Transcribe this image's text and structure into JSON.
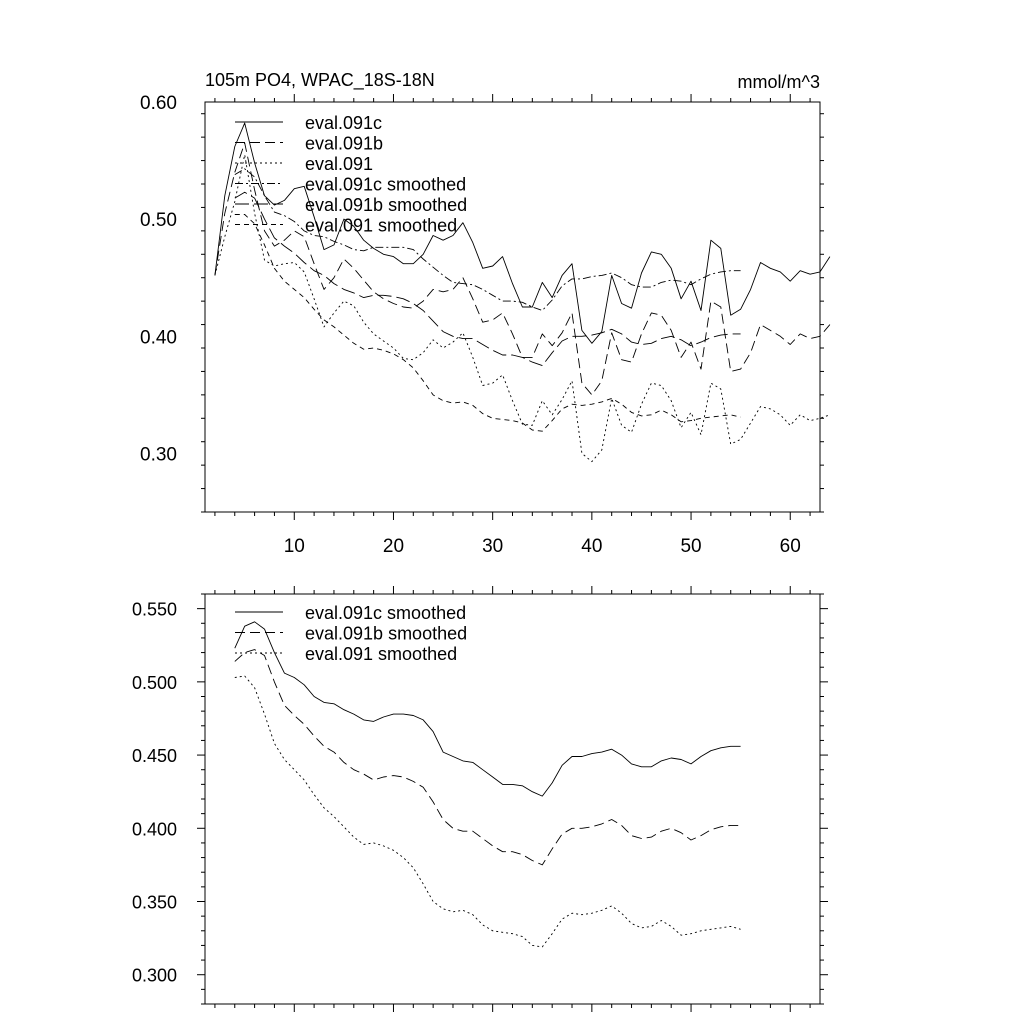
{
  "chart_data": [
    {
      "type": "line",
      "title": "105m PO4, WPAC_18S-18N",
      "units": "mmol/m^3",
      "xlim": [
        1,
        63
      ],
      "ylim": [
        0.25,
        0.6
      ],
      "xticks": [
        10,
        20,
        30,
        40,
        50,
        60
      ],
      "xtick_labels": [
        "10",
        "20",
        "30",
        "40",
        "50",
        "60"
      ],
      "yticks": [
        0.3,
        0.4,
        0.5,
        0.6
      ],
      "ytick_labels": [
        "0.30",
        "0.40",
        "0.50",
        "0.60"
      ],
      "legend_position": "top-left",
      "series": [
        {
          "name": "eval.091c",
          "style": "solid",
          "x_start": 2,
          "values": [
            0.452,
            0.52,
            0.562,
            0.582,
            0.548,
            0.52,
            0.512,
            0.516,
            0.526,
            0.528,
            0.502,
            0.474,
            0.478,
            0.5,
            0.494,
            0.482,
            0.475,
            0.47,
            0.468,
            0.462,
            0.462,
            0.47,
            0.486,
            0.482,
            0.486,
            0.497,
            0.48,
            0.458,
            0.46,
            0.468,
            0.445,
            0.425,
            0.425,
            0.446,
            0.433,
            0.452,
            0.462,
            0.405,
            0.394,
            0.404,
            0.452,
            0.428,
            0.424,
            0.454,
            0.472,
            0.47,
            0.458,
            0.432,
            0.447,
            0.422,
            0.482,
            0.475,
            0.418,
            0.423,
            0.44,
            0.463,
            0.458,
            0.455,
            0.447,
            0.456,
            0.453,
            0.455,
            0.468
          ]
        },
        {
          "name": "eval.091b",
          "style": "dash",
          "x_start": 2,
          "values": [
            0.452,
            0.505,
            0.54,
            0.565,
            0.525,
            0.49,
            0.477,
            0.482,
            0.49,
            0.485,
            0.462,
            0.44,
            0.45,
            0.466,
            0.458,
            0.448,
            0.438,
            0.432,
            0.428,
            0.425,
            0.424,
            0.43,
            0.44,
            0.438,
            0.44,
            0.45,
            0.432,
            0.412,
            0.414,
            0.42,
            0.402,
            0.382,
            0.382,
            0.402,
            0.392,
            0.403,
            0.42,
            0.36,
            0.35,
            0.362,
            0.403,
            0.38,
            0.378,
            0.402,
            0.42,
            0.418,
            0.405,
            0.382,
            0.395,
            0.372,
            0.43,
            0.425,
            0.37,
            0.372,
            0.386,
            0.41,
            0.405,
            0.4,
            0.393,
            0.402,
            0.398,
            0.4,
            0.41
          ]
        },
        {
          "name": "eval.091",
          "style": "dot",
          "x_start": 2,
          "values": [
            0.452,
            0.485,
            0.515,
            0.555,
            0.505,
            0.465,
            0.46,
            0.462,
            0.463,
            0.455,
            0.432,
            0.408,
            0.42,
            0.43,
            0.426,
            0.412,
            0.402,
            0.396,
            0.39,
            0.381,
            0.38,
            0.386,
            0.397,
            0.39,
            0.395,
            0.403,
            0.382,
            0.358,
            0.36,
            0.367,
            0.345,
            0.325,
            0.324,
            0.345,
            0.333,
            0.346,
            0.362,
            0.3,
            0.293,
            0.303,
            0.347,
            0.324,
            0.318,
            0.342,
            0.36,
            0.358,
            0.345,
            0.322,
            0.335,
            0.316,
            0.36,
            0.355,
            0.308,
            0.312,
            0.326,
            0.34,
            0.338,
            0.333,
            0.324,
            0.333,
            0.328,
            0.33,
            0.333
          ]
        },
        {
          "name": "eval.091c smoothed",
          "style": "dashdot",
          "x_start": 4,
          "values": [
            0.538,
            0.543,
            0.536,
            0.52,
            0.506,
            0.503,
            0.498,
            0.49,
            0.486,
            0.485,
            0.481,
            0.478,
            0.474,
            0.473,
            0.476,
            0.476,
            0.476,
            0.476,
            0.474,
            0.466,
            0.459,
            0.452,
            0.446,
            0.445,
            0.444,
            0.44,
            0.435,
            0.43,
            0.43,
            0.429,
            0.425,
            0.422,
            0.431,
            0.443,
            0.449,
            0.449,
            0.451,
            0.452,
            0.454,
            0.45,
            0.444,
            0.442,
            0.442,
            0.446,
            0.448,
            0.447,
            0.444,
            0.449,
            0.453,
            0.455,
            0.456,
            0.456
          ]
        },
        {
          "name": "eval.091b smoothed",
          "style": "longdash",
          "x_start": 4,
          "values": [
            0.518,
            0.523,
            0.518,
            0.5,
            0.484,
            0.477,
            0.471,
            0.463,
            0.456,
            0.452,
            0.445,
            0.44,
            0.437,
            0.433,
            0.435,
            0.435,
            0.434,
            0.432,
            0.428,
            0.422,
            0.413,
            0.404,
            0.4,
            0.398,
            0.398,
            0.393,
            0.388,
            0.384,
            0.384,
            0.382,
            0.378,
            0.375,
            0.386,
            0.396,
            0.4,
            0.4,
            0.401,
            0.403,
            0.406,
            0.402,
            0.395,
            0.393,
            0.394,
            0.398,
            0.4,
            0.397,
            0.392,
            0.395,
            0.399,
            0.401,
            0.402,
            0.402
          ]
        },
        {
          "name": "eval.091 smoothed",
          "style": "shortdash",
          "x_start": 4,
          "values": [
            0.504,
            0.504,
            0.496,
            0.478,
            0.458,
            0.447,
            0.44,
            0.433,
            0.423,
            0.414,
            0.408,
            0.401,
            0.394,
            0.389,
            0.39,
            0.388,
            0.385,
            0.38,
            0.373,
            0.362,
            0.35,
            0.345,
            0.343,
            0.344,
            0.341,
            0.334,
            0.33,
            0.329,
            0.328,
            0.326,
            0.32,
            0.319,
            0.328,
            0.338,
            0.342,
            0.341,
            0.342,
            0.344,
            0.347,
            0.342,
            0.335,
            0.332,
            0.333,
            0.337,
            0.333,
            0.327,
            0.328,
            0.33,
            0.331,
            0.332,
            0.333,
            0.331
          ]
        }
      ]
    },
    {
      "type": "line",
      "title": "",
      "xlim": [
        1,
        63
      ],
      "ylim": [
        0.28,
        0.56
      ],
      "xticks": [
        10,
        20,
        30,
        40,
        50,
        60
      ],
      "yticks": [
        0.3,
        0.35,
        0.4,
        0.45,
        0.5,
        0.55
      ],
      "ytick_labels": [
        "0.300",
        "0.350",
        "0.400",
        "0.450",
        "0.500",
        "0.550"
      ],
      "legend_position": "top-left",
      "series": [
        {
          "name": "eval.091c smoothed",
          "style": "solid",
          "x_start": 4,
          "values": [
            0.523,
            0.538,
            0.541,
            0.536,
            0.52,
            0.506,
            0.503,
            0.498,
            0.49,
            0.486,
            0.485,
            0.481,
            0.478,
            0.474,
            0.473,
            0.476,
            0.478,
            0.478,
            0.477,
            0.474,
            0.466,
            0.452,
            0.449,
            0.446,
            0.445,
            0.44,
            0.435,
            0.43,
            0.43,
            0.429,
            0.425,
            0.422,
            0.431,
            0.443,
            0.449,
            0.449,
            0.451,
            0.452,
            0.454,
            0.45,
            0.444,
            0.442,
            0.442,
            0.446,
            0.448,
            0.447,
            0.444,
            0.449,
            0.453,
            0.455,
            0.456,
            0.456
          ]
        },
        {
          "name": "eval.091b smoothed",
          "style": "dash",
          "x_start": 4,
          "values": [
            0.514,
            0.52,
            0.522,
            0.518,
            0.5,
            0.484,
            0.477,
            0.471,
            0.463,
            0.456,
            0.452,
            0.445,
            0.44,
            0.437,
            0.433,
            0.435,
            0.436,
            0.435,
            0.432,
            0.428,
            0.418,
            0.406,
            0.4,
            0.398,
            0.398,
            0.393,
            0.388,
            0.384,
            0.384,
            0.382,
            0.378,
            0.375,
            0.386,
            0.396,
            0.4,
            0.4,
            0.401,
            0.403,
            0.406,
            0.402,
            0.395,
            0.393,
            0.394,
            0.398,
            0.4,
            0.397,
            0.392,
            0.395,
            0.399,
            0.401,
            0.402,
            0.402
          ]
        },
        {
          "name": "eval.091 smoothed",
          "style": "dot",
          "x_start": 4,
          "values": [
            0.503,
            0.504,
            0.496,
            0.478,
            0.458,
            0.447,
            0.44,
            0.433,
            0.423,
            0.414,
            0.408,
            0.401,
            0.394,
            0.389,
            0.39,
            0.388,
            0.385,
            0.38,
            0.373,
            0.362,
            0.35,
            0.345,
            0.343,
            0.344,
            0.341,
            0.334,
            0.33,
            0.329,
            0.328,
            0.326,
            0.32,
            0.319,
            0.328,
            0.338,
            0.342,
            0.341,
            0.342,
            0.344,
            0.347,
            0.342,
            0.335,
            0.332,
            0.333,
            0.337,
            0.333,
            0.327,
            0.328,
            0.33,
            0.331,
            0.332,
            0.333,
            0.331
          ]
        }
      ]
    }
  ]
}
